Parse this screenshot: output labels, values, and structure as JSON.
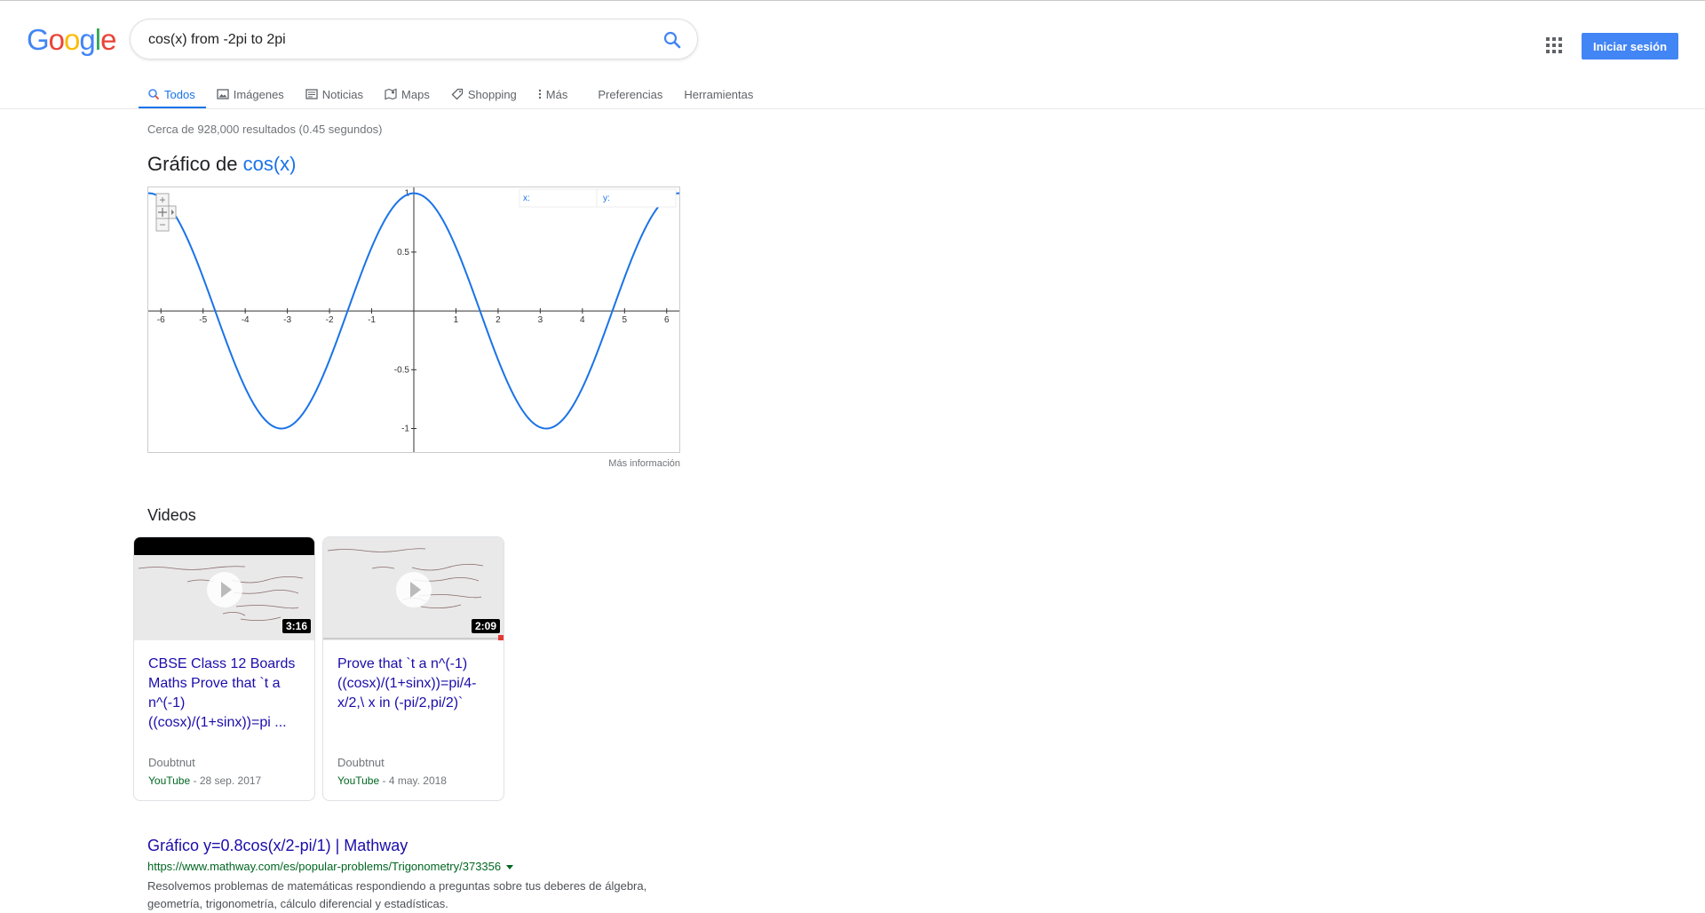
{
  "header": {
    "logo": [
      "G",
      "o",
      "o",
      "g",
      "l",
      "e"
    ],
    "logo_colors": [
      "#4285f4",
      "#ea4335",
      "#fbbc05",
      "#4285f4",
      "#34a853",
      "#ea4335"
    ],
    "search_query": "cos(x) from -2pi to 2pi",
    "signin_label": "Iniciar sesión"
  },
  "tabs": [
    {
      "label": "Todos",
      "icon": "search-icon",
      "active": true
    },
    {
      "label": "Imágenes",
      "icon": "image-icon"
    },
    {
      "label": "Noticias",
      "icon": "news-icon"
    },
    {
      "label": "Maps",
      "icon": "map-icon"
    },
    {
      "label": "Shopping",
      "icon": "tag-icon"
    },
    {
      "label": "Más",
      "icon": "more-vert-icon"
    },
    {
      "label": "Preferencias"
    },
    {
      "label": "Herramientas"
    }
  ],
  "results": {
    "stats": "Cerca de 928,000 resultados (0.45 segundos)"
  },
  "graph": {
    "title_prefix": "Gráfico de",
    "title_fn": "cos(x)",
    "x_label": "x:",
    "y_label": "y:",
    "more_info": "Más información",
    "colors": {
      "curve": "#1a73e8",
      "axis": "#333333",
      "tick_label": "#333333"
    }
  },
  "chart_data": {
    "type": "line",
    "title": "",
    "series": [
      {
        "function": "cos(x)"
      }
    ],
    "x_ticks": [
      -6,
      -5,
      -4,
      -3,
      -2,
      -1,
      1,
      2,
      3,
      4,
      5,
      6
    ],
    "y_ticks": [
      1,
      0.5,
      -0.5,
      -1
    ],
    "xlim": [
      -6.3,
      6.3
    ],
    "ylim": [
      -1.2,
      1.05
    ],
    "grid": false
  },
  "videos": {
    "heading": "Videos",
    "items": [
      {
        "title": "CBSE Class 12 Boards Maths Prove that `t a n^(-1) ((cosx)/(1+sinx))=pi ...",
        "duration": "3:16",
        "channel": "Doubtnut",
        "platform": "YouTube",
        "date": " - 28 sep. 2017"
      },
      {
        "title": "Prove that `t a n^(-1) ((cosx)/(1+sinx))=pi/4-x/2,\\ x in (-pi/2,pi/2)`",
        "duration": "2:09",
        "channel": "Doubtnut",
        "platform": "YouTube",
        "date": " - 4 may. 2018"
      }
    ]
  },
  "organic": {
    "title": "Gráfico y=0.8cos(x/2-pi/1) | Mathway",
    "url": "https://www.mathway.com/es/popular-problems/Trigonometry/373356",
    "snippet": "Resolvemos problemas de matemáticas respondiendo a preguntas sobre tus deberes de álgebra, geometría, trigonometría, cálculo diferencial y estadísticas."
  }
}
